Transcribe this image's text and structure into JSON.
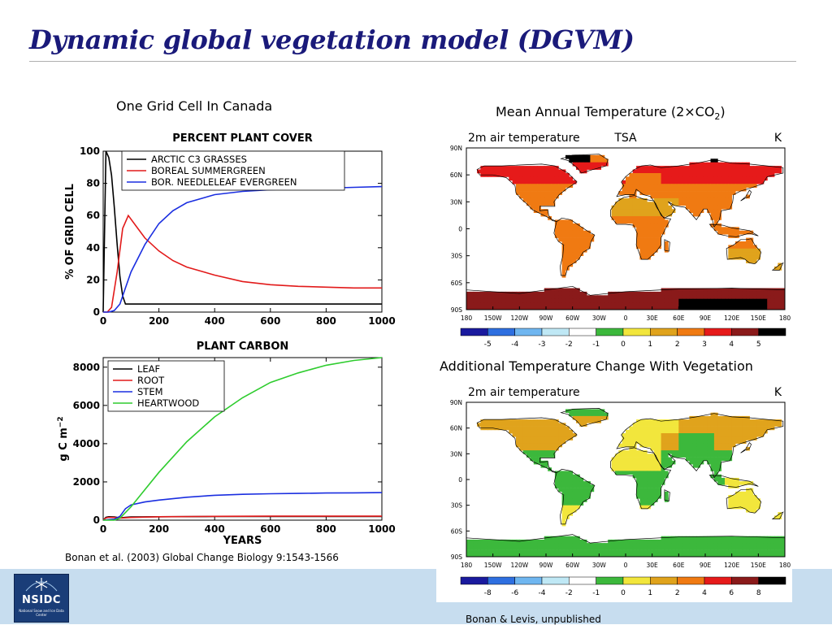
{
  "slide": {
    "title": "Dynamic global vegetation model (DGVM)",
    "left_caption": "One Grid Cell In Canada",
    "right_caption_top_parts": [
      "Mean Annual Temperature (2",
      "×",
      "CO",
      "2",
      ")"
    ],
    "right_caption_bottom": "Additional Temperature Change With Vegetation",
    "citation_left": "Bonan et al. (2003) Global Change Biology 9:1543-1566",
    "citation_right": "Bonan & Levis, unpublished",
    "logo_text": "NSIDC",
    "logo_subtext": "National Snow and Ice Data Center"
  },
  "chart_data": [
    {
      "type": "line",
      "title": "PERCENT PLANT COVER",
      "xlabel": "",
      "ylabel": "% OF GRID CELL",
      "xlim": [
        0,
        1000
      ],
      "ylim": [
        0,
        100
      ],
      "xticks": [
        0,
        200,
        400,
        600,
        800,
        1000
      ],
      "yticks": [
        0,
        20,
        40,
        60,
        80,
        100
      ],
      "legend_position": "top-left",
      "series": [
        {
          "name": "ARCTIC C3 GRASSES",
          "color": "#000000",
          "x": [
            0,
            10,
            20,
            30,
            40,
            50,
            60,
            70,
            80,
            100,
            150,
            200,
            300,
            400,
            500,
            600,
            700,
            800,
            900,
            1000
          ],
          "y": [
            0,
            100,
            96,
            85,
            65,
            42,
            22,
            10,
            5,
            5,
            5,
            5,
            5,
            5,
            5,
            5,
            5,
            5,
            5,
            5
          ]
        },
        {
          "name": "BOREAL SUMMERGREEN",
          "color": "#e21a1a",
          "x": [
            0,
            15,
            30,
            50,
            70,
            90,
            120,
            150,
            200,
            250,
            300,
            400,
            500,
            600,
            700,
            800,
            900,
            1000
          ],
          "y": [
            0,
            0,
            3,
            25,
            52,
            60,
            53,
            46,
            38,
            32,
            28,
            23,
            19,
            17,
            16,
            15.5,
            15,
            15
          ]
        },
        {
          "name": "BOR. NEEDLELEAF EVERGREEN",
          "color": "#1a2ee0",
          "x": [
            0,
            20,
            40,
            60,
            80,
            100,
            150,
            200,
            250,
            300,
            400,
            500,
            600,
            700,
            800,
            900,
            1000
          ],
          "y": [
            0,
            0,
            1,
            5,
            15,
            25,
            42,
            55,
            63,
            68,
            73,
            75,
            76,
            76.5,
            77,
            77.5,
            78
          ]
        }
      ]
    },
    {
      "type": "line",
      "title": "PLANT CARBON",
      "xlabel": "YEARS",
      "ylabel": "g C m",
      "ylabel_superscript": "−2",
      "xlim": [
        0,
        1000
      ],
      "ylim": [
        0,
        8500
      ],
      "xticks": [
        0,
        200,
        400,
        600,
        800,
        1000
      ],
      "yticks": [
        0,
        2000,
        4000,
        6000,
        8000
      ],
      "legend_position": "top-left",
      "series": [
        {
          "name": "LEAF",
          "color": "#000000",
          "x": [
            0,
            10,
            20,
            40,
            60,
            80,
            100,
            200,
            400,
            600,
            800,
            1000
          ],
          "y": [
            0,
            150,
            180,
            170,
            120,
            150,
            170,
            180,
            190,
            190,
            190,
            190
          ]
        },
        {
          "name": "ROOT",
          "color": "#e21a1a",
          "x": [
            0,
            10,
            20,
            40,
            60,
            100,
            200,
            400,
            600,
            800,
            1000
          ],
          "y": [
            0,
            120,
            150,
            140,
            110,
            140,
            180,
            200,
            210,
            210,
            210
          ]
        },
        {
          "name": "STEM",
          "color": "#1a2ee0",
          "x": [
            0,
            20,
            40,
            60,
            80,
            100,
            150,
            200,
            300,
            400,
            500,
            600,
            700,
            800,
            900,
            1000
          ],
          "y": [
            0,
            30,
            50,
            200,
            600,
            800,
            950,
            1050,
            1200,
            1300,
            1350,
            1380,
            1400,
            1420,
            1430,
            1440
          ]
        },
        {
          "name": "HEARTWOOD",
          "color": "#2ecc2e",
          "x": [
            0,
            40,
            60,
            100,
            150,
            200,
            300,
            400,
            500,
            600,
            700,
            800,
            900,
            1000
          ],
          "y": [
            0,
            0,
            100,
            700,
            1600,
            2500,
            4100,
            5400,
            6400,
            7200,
            7700,
            8100,
            8350,
            8500
          ]
        }
      ]
    },
    {
      "type": "heatmap",
      "title": "2m air temperature",
      "variable": "TSA",
      "unit": "K",
      "x_tick_labels": [
        "180",
        "150W",
        "120W",
        "90W",
        "60W",
        "30W",
        "0",
        "30E",
        "60E",
        "90E",
        "120E",
        "150E",
        "180"
      ],
      "y_tick_labels": [
        "90N",
        "60N",
        "30N",
        "0",
        "30S",
        "60S",
        "90S"
      ],
      "colorbar_labels": [
        "-5",
        "-4",
        "-3",
        "-2",
        "-1",
        "0",
        "1",
        "2",
        "3",
        "4",
        "5"
      ],
      "colorbar_colors": [
        "#1a1a9e",
        "#2e6fe0",
        "#6fb6f0",
        "#bfe8f5",
        "#ffffff",
        "#3cb83c",
        "#f2e63c",
        "#e0a31c",
        "#f07a12",
        "#e61a1a",
        "#8a1a1a",
        "#000000"
      ]
    },
    {
      "type": "heatmap",
      "title": "2m air temperature",
      "unit": "K",
      "x_tick_labels": [
        "180",
        "150W",
        "120W",
        "90W",
        "60W",
        "30W",
        "0",
        "30E",
        "60E",
        "90E",
        "120E",
        "150E",
        "180"
      ],
      "y_tick_labels": [
        "90N",
        "60N",
        "30N",
        "0",
        "30S",
        "60S",
        "90S"
      ],
      "colorbar_labels": [
        "-8",
        "-6",
        "-4",
        "-2",
        "-1",
        "0",
        "1",
        "2",
        "4",
        "6",
        "8"
      ],
      "colorbar_colors": [
        "#1a1a9e",
        "#2e6fe0",
        "#6fb6f0",
        "#bfe8f5",
        "#ffffff",
        "#3cb83c",
        "#f2e63c",
        "#e0a31c",
        "#f07a12",
        "#e61a1a",
        "#8a1a1a",
        "#000000"
      ]
    }
  ]
}
